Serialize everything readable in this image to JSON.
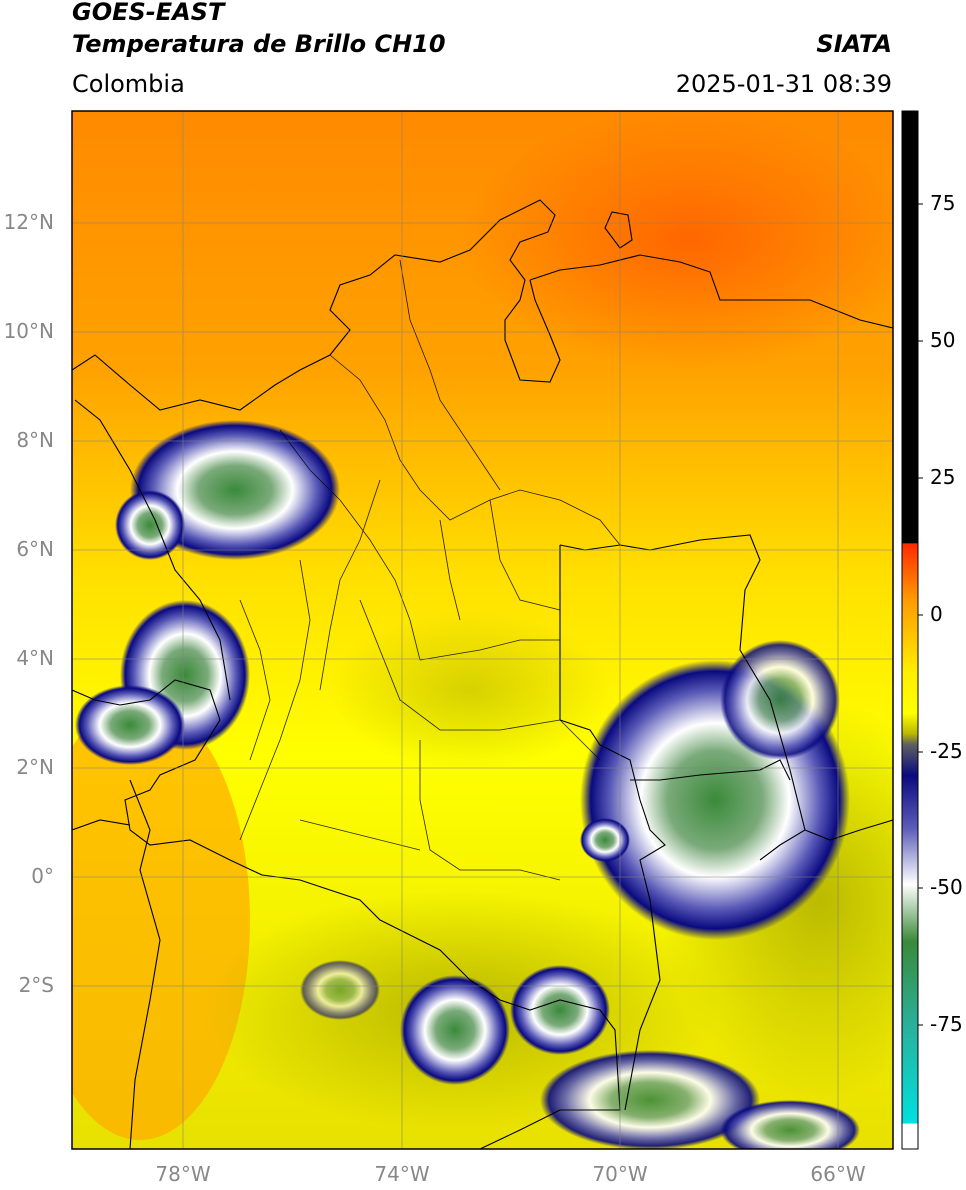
{
  "header": {
    "satellite": "GOES-EAST",
    "product": "Temperatura de Brillo CH10",
    "brand": "SIATA",
    "region": "Colombia",
    "datetime": "2025-01-31 08:39"
  },
  "map": {
    "lat_labels": [
      "12°N",
      "10°N",
      "8°N",
      "6°N",
      "4°N",
      "2°N",
      "0°",
      "2°S"
    ],
    "lon_labels": [
      "78°W",
      "74°W",
      "70°W",
      "66°W"
    ],
    "gridlines": true
  },
  "colorbar": {
    "ticks": [
      "75",
      "50",
      "25",
      "0",
      "-25",
      "-50",
      "-75"
    ],
    "range": [
      -95,
      90
    ],
    "colors": {
      "above_10": "#000000",
      "warm": "#ff2a00",
      "orange": "#ff9900",
      "yellow": "#ffff00",
      "olive": "#b8b800",
      "gray": "#606060",
      "navy": "#0a0a80",
      "blue": "#5a5ab8",
      "white": "#ffffff",
      "green": "#3a8a3a",
      "teal": "#2ab09a",
      "cyan": "#00e0e0"
    }
  }
}
